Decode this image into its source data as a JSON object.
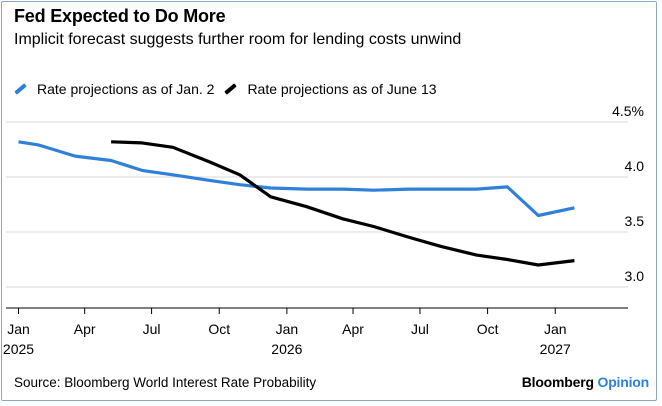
{
  "header": {
    "title": "Fed Expected to Do More",
    "subtitle": "Implicit forecast suggests further room for lending costs unwind"
  },
  "footer": {
    "source": "Source: Bloomberg World Interest Rate Probability",
    "brand_name": "Bloomberg",
    "brand_suffix": "Opinion"
  },
  "colors": {
    "series_jan": "#2f80d8",
    "series_june": "#000000",
    "grid": "#d9d9d9",
    "brand_accent": "#2f80d8"
  },
  "chart_data": {
    "type": "line",
    "x_axis": {
      "type": "date",
      "range": [
        "2024-12-15",
        "2027-02-20"
      ],
      "ticks": [
        {
          "x": "2025-01-01",
          "label": "Jan",
          "sublabel": "2025"
        },
        {
          "x": "2025-04-01",
          "label": "Apr",
          "sublabel": ""
        },
        {
          "x": "2025-07-01",
          "label": "Jul",
          "sublabel": ""
        },
        {
          "x": "2025-10-01",
          "label": "Oct",
          "sublabel": ""
        },
        {
          "x": "2026-01-01",
          "label": "Jan",
          "sublabel": "2026"
        },
        {
          "x": "2026-04-01",
          "label": "Apr",
          "sublabel": ""
        },
        {
          "x": "2026-07-01",
          "label": "Jul",
          "sublabel": ""
        },
        {
          "x": "2026-10-01",
          "label": "Oct",
          "sublabel": ""
        },
        {
          "x": "2027-01-01",
          "label": "Jan",
          "sublabel": "2027"
        }
      ]
    },
    "y_axis": {
      "range": [
        2.9,
        4.5
      ],
      "ticks": [
        {
          "value": 4.5,
          "label": "4.5%"
        },
        {
          "value": 4.0,
          "label": "4.0"
        },
        {
          "value": 3.5,
          "label": "3.5"
        },
        {
          "value": 3.0,
          "label": "3.0"
        }
      ],
      "position": "right"
    },
    "grid": true,
    "legend_position": "top-left",
    "series": [
      {
        "name": "Rate projections as of Jan. 2",
        "color": "#2f80d8",
        "points": [
          {
            "x": "2025-01-01",
            "y": 4.32
          },
          {
            "x": "2025-01-29",
            "y": 4.29
          },
          {
            "x": "2025-03-19",
            "y": 4.19
          },
          {
            "x": "2025-05-07",
            "y": 4.15
          },
          {
            "x": "2025-06-18",
            "y": 4.06
          },
          {
            "x": "2025-07-30",
            "y": 4.02
          },
          {
            "x": "2025-09-17",
            "y": 3.97
          },
          {
            "x": "2025-10-29",
            "y": 3.93
          },
          {
            "x": "2025-12-10",
            "y": 3.9
          },
          {
            "x": "2026-01-28",
            "y": 3.89
          },
          {
            "x": "2026-03-18",
            "y": 3.89
          },
          {
            "x": "2026-04-29",
            "y": 3.88
          },
          {
            "x": "2026-06-17",
            "y": 3.89
          },
          {
            "x": "2026-07-29",
            "y": 3.89
          },
          {
            "x": "2026-09-16",
            "y": 3.89
          },
          {
            "x": "2026-10-28",
            "y": 3.91
          },
          {
            "x": "2026-12-09",
            "y": 3.65
          },
          {
            "x": "2027-01-27",
            "y": 3.72
          }
        ]
      },
      {
        "name": "Rate projections as of June 13",
        "color": "#000000",
        "points": [
          {
            "x": "2025-05-07",
            "y": 4.32
          },
          {
            "x": "2025-06-18",
            "y": 4.31
          },
          {
            "x": "2025-07-30",
            "y": 4.27
          },
          {
            "x": "2025-09-17",
            "y": 4.14
          },
          {
            "x": "2025-10-29",
            "y": 4.02
          },
          {
            "x": "2025-12-10",
            "y": 3.82
          },
          {
            "x": "2026-01-28",
            "y": 3.73
          },
          {
            "x": "2026-03-18",
            "y": 3.62
          },
          {
            "x": "2026-04-29",
            "y": 3.55
          },
          {
            "x": "2026-06-17",
            "y": 3.45
          },
          {
            "x": "2026-07-29",
            "y": 3.37
          },
          {
            "x": "2026-09-16",
            "y": 3.29
          },
          {
            "x": "2026-10-28",
            "y": 3.25
          },
          {
            "x": "2026-12-09",
            "y": 3.2
          },
          {
            "x": "2027-01-27",
            "y": 3.24
          }
        ]
      }
    ]
  }
}
